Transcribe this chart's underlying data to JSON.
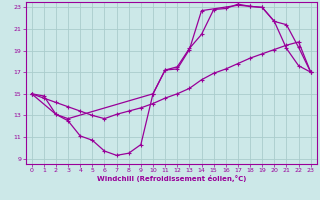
{
  "xlabel": "Windchill (Refroidissement éolien,°C)",
  "xlim": [
    -0.5,
    23.5
  ],
  "ylim": [
    8.5,
    23.5
  ],
  "xticks": [
    0,
    1,
    2,
    3,
    4,
    5,
    6,
    7,
    8,
    9,
    10,
    11,
    12,
    13,
    14,
    15,
    16,
    17,
    18,
    19,
    20,
    21,
    22,
    23
  ],
  "yticks": [
    9,
    11,
    13,
    15,
    17,
    19,
    21,
    23
  ],
  "bg_color": "#cce8e8",
  "line_color": "#990099",
  "grid_color": "#aacccc",
  "line1_x": [
    0,
    1,
    2,
    3,
    4,
    5,
    6,
    7,
    8,
    9,
    10,
    11,
    12,
    13,
    14,
    15,
    16,
    17,
    18,
    19,
    20,
    21,
    22,
    23
  ],
  "line1_y": [
    15.0,
    14.8,
    13.1,
    12.5,
    11.1,
    10.7,
    9.7,
    9.3,
    9.5,
    10.3,
    15.0,
    17.2,
    17.5,
    19.2,
    20.5,
    22.8,
    22.9,
    23.3,
    23.1,
    23.0,
    21.7,
    19.2,
    17.6,
    17.0
  ],
  "line2_x": [
    0,
    2,
    3,
    10,
    11,
    12,
    13,
    14,
    17,
    18,
    19,
    20,
    21,
    22,
    23
  ],
  "line2_y": [
    15.0,
    13.1,
    12.7,
    15.0,
    17.2,
    17.3,
    19.1,
    22.7,
    23.2,
    23.1,
    23.0,
    21.7,
    21.4,
    19.3,
    17.0
  ],
  "line3_x": [
    0,
    1,
    2,
    3,
    4,
    5,
    6,
    7,
    8,
    9,
    10,
    11,
    12,
    13,
    14,
    15,
    16,
    17,
    18,
    19,
    20,
    21,
    22,
    23
  ],
  "line3_y": [
    15.0,
    14.6,
    14.2,
    13.8,
    13.4,
    13.0,
    12.7,
    13.1,
    13.4,
    13.7,
    14.1,
    14.6,
    15.0,
    15.5,
    16.3,
    16.9,
    17.3,
    17.8,
    18.3,
    18.7,
    19.1,
    19.5,
    19.8,
    17.0
  ]
}
